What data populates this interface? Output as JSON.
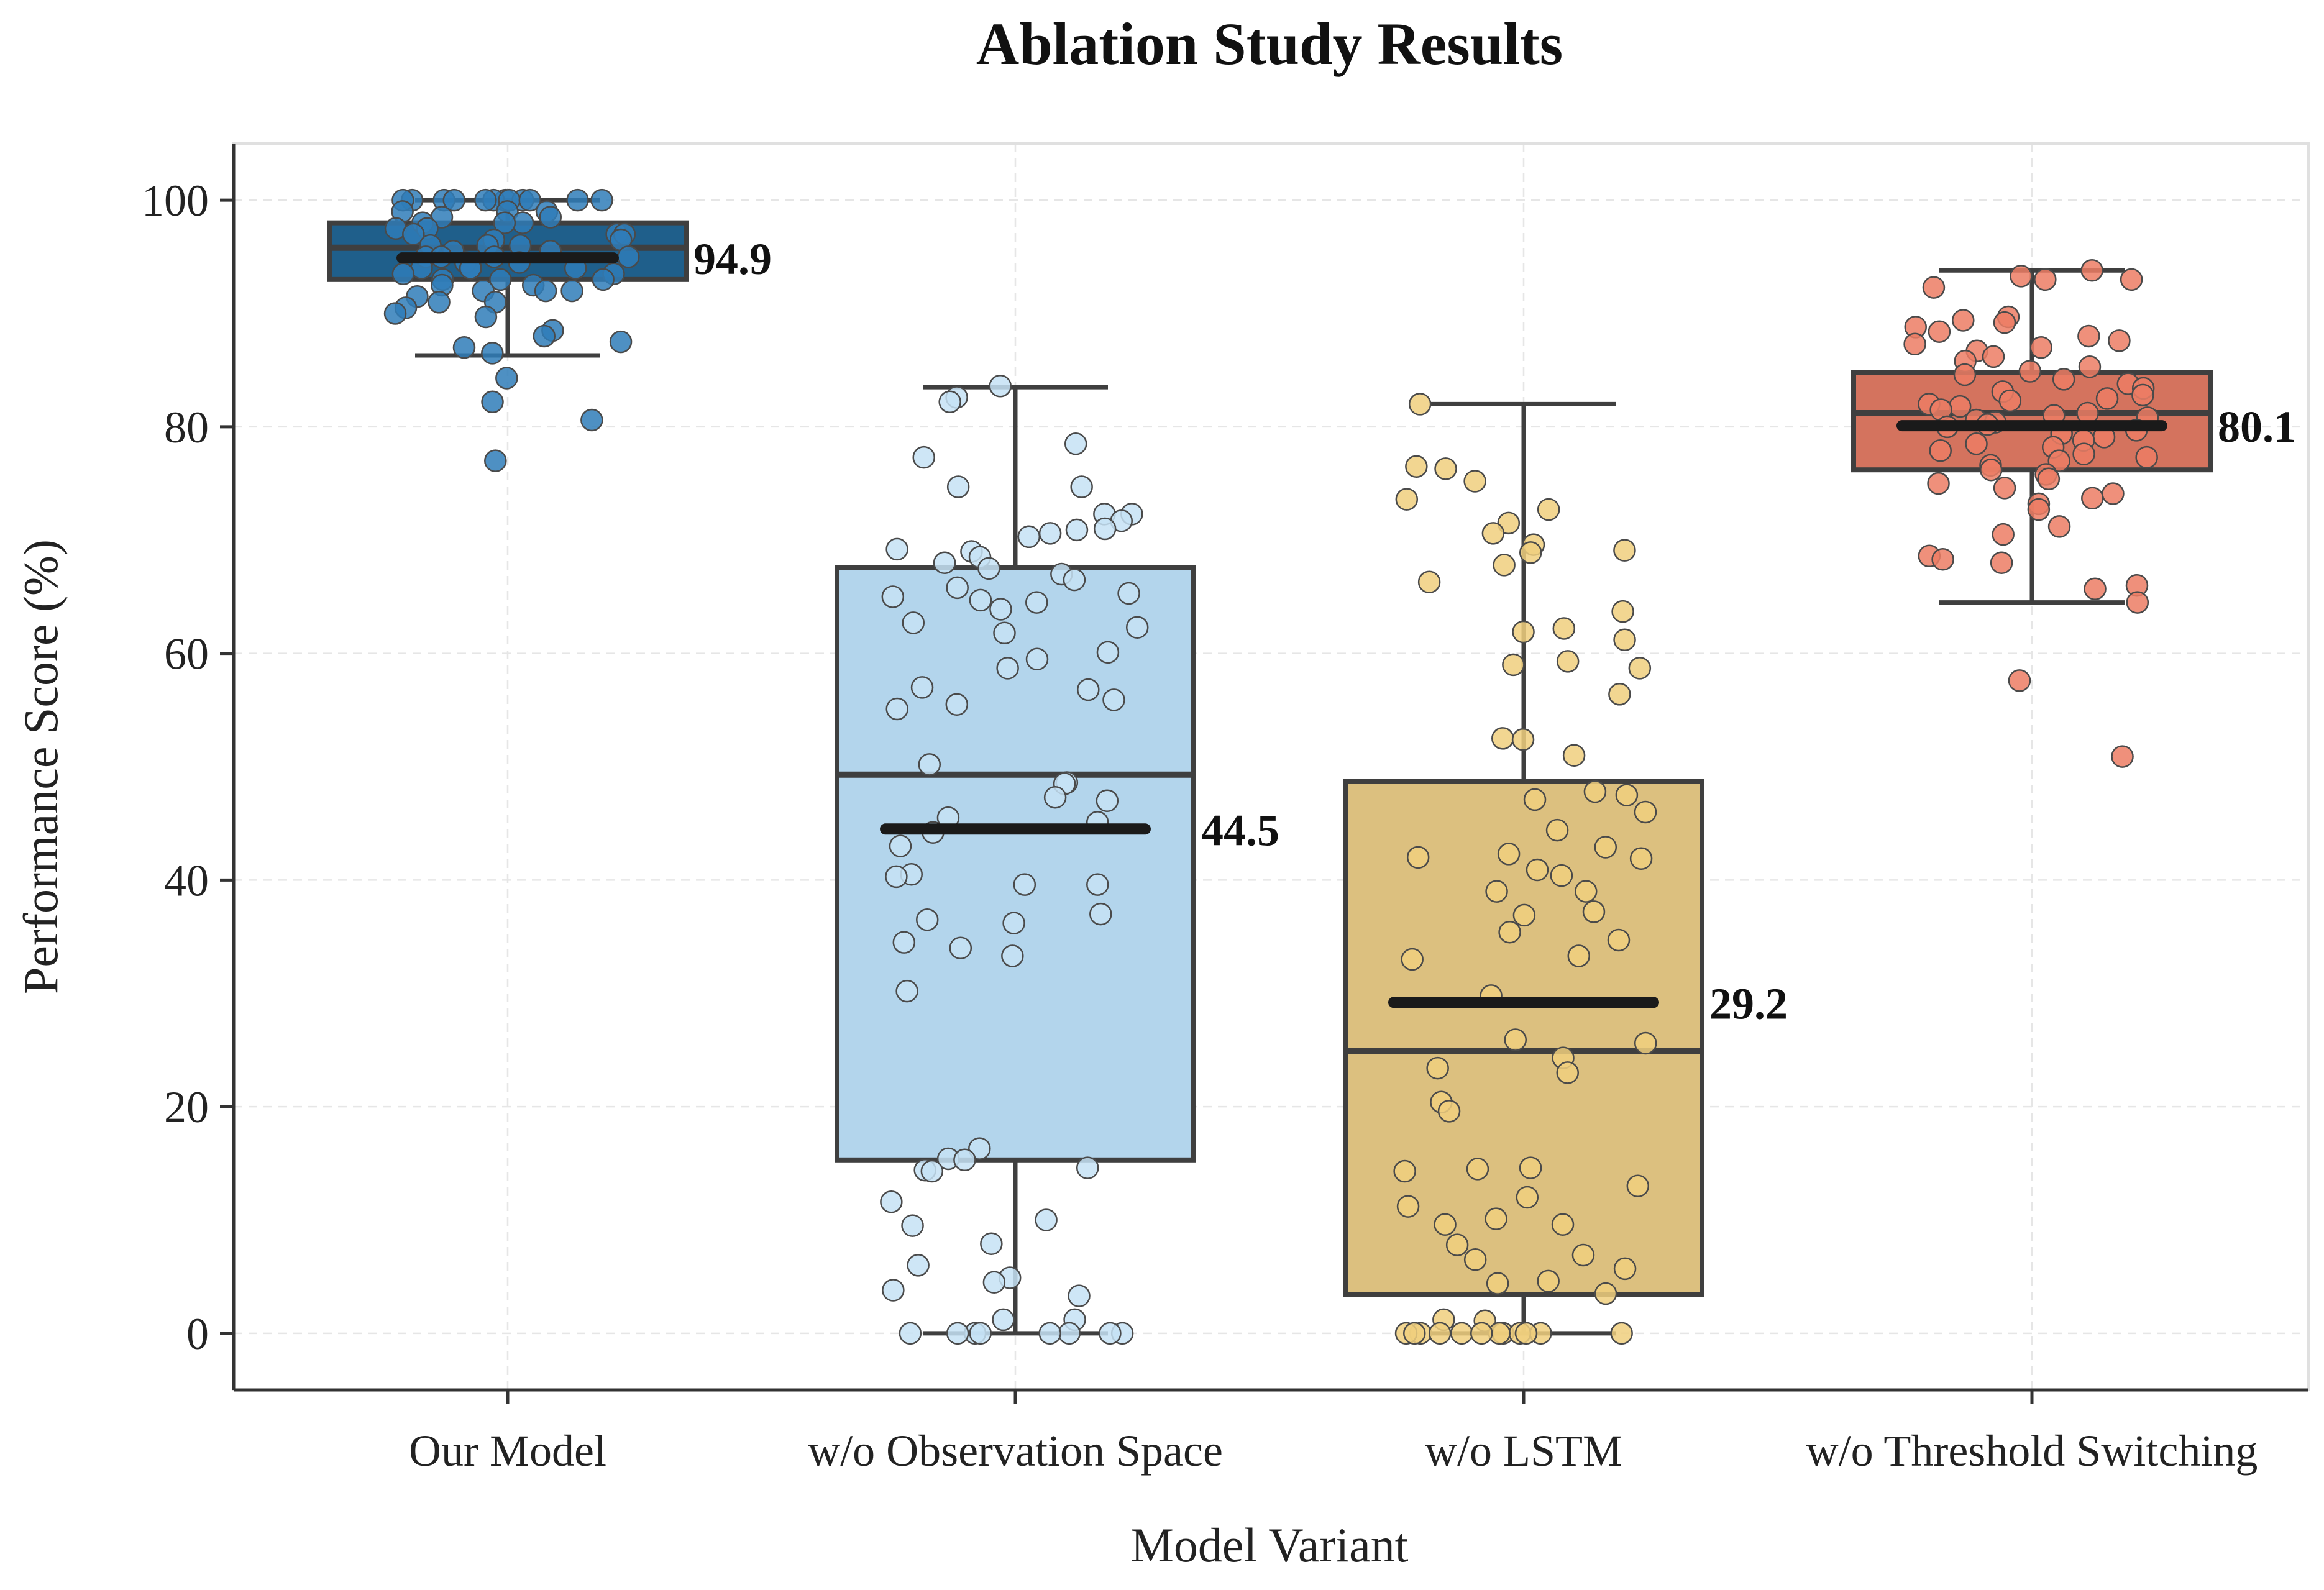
{
  "chart_data": {
    "type": "box",
    "title": "Ablation Study Results",
    "xlabel": "Model Variant",
    "ylabel": "Performance Score (%)",
    "ylim": [
      -5,
      105
    ],
    "yticks": [
      0,
      20,
      40,
      60,
      80,
      100
    ],
    "grid": true,
    "legend": "none",
    "categories": [
      "Our Model",
      "w/o Observation Space",
      "w/o LSTM",
      "w/o Threshold Switching"
    ],
    "series": [
      {
        "box": {
          "whisker_low": 86.3,
          "q1": 93.0,
          "median": 95.8,
          "q3": 98.0,
          "whisker_high": 100.0
        },
        "mean": 94.9,
        "mean_label": "94.9",
        "color": "#1f5f8b",
        "point_color": "#2f7cb8",
        "points": [
          100,
          100,
          100,
          100,
          100,
          100,
          100,
          100,
          100,
          100,
          100,
          100,
          99,
          99,
          99,
          98.5,
          98.5,
          98,
          98,
          98,
          97.5,
          97.5,
          97,
          97,
          97,
          96.5,
          96.5,
          96,
          96,
          96,
          95.5,
          95.5,
          95,
          95,
          95,
          95,
          94.5,
          94.5,
          94,
          94,
          94,
          94,
          93.5,
          93.5,
          93,
          93,
          93,
          92.5,
          92.5,
          92,
          92,
          92,
          91.5,
          91,
          91,
          90.5,
          90,
          89.7,
          88.5,
          88,
          87.5,
          87,
          86.5,
          84.3,
          82.2,
          80.6,
          77
        ]
      },
      {
        "box": {
          "whisker_low": 0.0,
          "q1": 15.3,
          "median": 49.3,
          "q3": 67.6,
          "whisker_high": 83.5
        },
        "mean": 44.5,
        "mean_label": "44.5",
        "color": "#b3d5ec",
        "point_color": "#c5e2f5",
        "points": [
          83.6,
          82.6,
          82.2,
          78.5,
          77.3,
          74.7,
          74.7,
          72.3,
          72.3,
          71.7,
          71,
          70.9,
          70.6,
          70.3,
          69.2,
          69,
          68.5,
          68,
          67.5,
          67,
          66.5,
          65.8,
          65.3,
          65,
          64.7,
          64.5,
          63.9,
          62.7,
          62.3,
          61.8,
          60.1,
          59.5,
          58.7,
          57,
          56.8,
          55.9,
          55.5,
          55.1,
          50.2,
          48.6,
          48.5,
          47.3,
          47,
          45.5,
          45.1,
          44.2,
          43,
          40.5,
          40.3,
          39.6,
          39.6,
          37,
          36.5,
          36.2,
          34.5,
          34,
          33.3,
          30.2,
          16.3,
          15.4,
          15.3,
          14.6,
          14.4,
          14.3,
          11.6,
          10,
          9.5,
          7.9,
          6,
          4.9,
          4.5,
          3.8,
          3.3,
          1.2,
          1.2,
          0,
          0,
          0,
          0,
          0,
          0,
          0,
          0
        ]
      },
      {
        "box": {
          "whisker_low": 0.0,
          "q1": 3.4,
          "median": 24.9,
          "q3": 48.7,
          "whisker_high": 82.0
        },
        "mean": 29.2,
        "mean_label": "29.2",
        "color": "#dcc07f",
        "point_color": "#f0cf7e",
        "points": [
          82,
          76.5,
          76.3,
          75.2,
          73.6,
          72.7,
          71.5,
          70.6,
          69.6,
          69.1,
          68.9,
          67.8,
          66.3,
          63.7,
          62.2,
          61.9,
          61.2,
          59.3,
          59,
          58.7,
          56.4,
          52.5,
          52.4,
          51,
          47.8,
          47.5,
          47.1,
          46,
          44.4,
          42.9,
          42.3,
          42,
          41.9,
          40.9,
          40.4,
          39,
          39,
          37.2,
          36.9,
          35.4,
          34.7,
          33.3,
          33,
          29.8,
          25.9,
          25.6,
          24.3,
          23.4,
          23,
          20.4,
          19.6,
          14.6,
          14.5,
          14.3,
          13,
          12,
          11.2,
          10.1,
          9.6,
          9.6,
          7.8,
          6.9,
          6.5,
          5.7,
          4.6,
          4.4,
          3.5,
          1.2,
          1.1,
          0,
          0,
          0,
          0,
          0,
          0,
          0,
          0,
          0,
          0,
          0,
          0
        ]
      },
      {
        "box": {
          "whisker_low": 64.5,
          "q1": 76.2,
          "median": 81.2,
          "q3": 84.8,
          "whisker_high": 93.8
        },
        "mean": 80.1,
        "mean_label": "80.1",
        "color": "#d4735e",
        "point_color": "#ec7d64",
        "points": [
          93.8,
          93.3,
          93,
          93,
          92.3,
          89.7,
          89.4,
          89.2,
          88.8,
          88.4,
          88,
          87.6,
          87.3,
          87,
          86.7,
          86.2,
          85.8,
          85.3,
          84.9,
          84.6,
          84.2,
          83.8,
          83.4,
          83.1,
          82.8,
          82.5,
          82.3,
          82,
          81.8,
          81.5,
          81.2,
          81,
          80.8,
          80.6,
          80.4,
          80.2,
          80,
          79.7,
          79.4,
          79.1,
          78.8,
          78.5,
          78.2,
          77.9,
          77.6,
          77.3,
          77,
          76.6,
          76.2,
          75.8,
          75.4,
          75,
          74.6,
          74.1,
          73.7,
          73.2,
          72.7,
          71.2,
          70.5,
          68.6,
          68.3,
          68,
          66,
          65.7,
          64.5,
          57.6,
          50.9
        ]
      }
    ]
  }
}
